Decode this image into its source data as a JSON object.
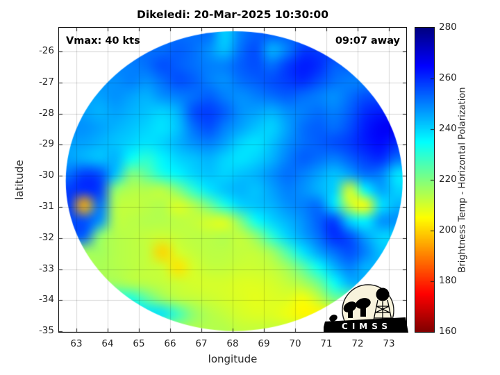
{
  "annotations": {
    "vmax": "Vmax: 40 kts",
    "time_away": "09:07 away"
  },
  "logo": {
    "text": "CIMSS"
  },
  "chart_data": {
    "type": "heatmap",
    "title": "Dikeledi: 20-Mar-2025 10:30:00",
    "xlabel": "longitude",
    "ylabel": "latitude",
    "colorbar_label": "Brightness Temp - Horizontal Polarization",
    "colormap": "jet_reversed",
    "value_range": [
      160,
      280
    ],
    "xlim": [
      62.44,
      73.56
    ],
    "ylim": [
      -35.14,
      -25.24
    ],
    "x_ticks": [
      63,
      64,
      65,
      66,
      67,
      68,
      69,
      70,
      71,
      72,
      73
    ],
    "y_ticks": [
      -26,
      -27,
      -28,
      -29,
      -30,
      -31,
      -32,
      -33,
      -34,
      -35
    ],
    "colorbar_ticks": [
      160,
      180,
      200,
      220,
      240,
      260,
      280
    ],
    "colorbar_inner_ticks": [
      180,
      200,
      220,
      240,
      260
    ],
    "grid_on": true,
    "swath": {
      "center_lon": 68.05,
      "center_lat": -30.17,
      "radius_lon": 5.39,
      "radius_lat": 4.82
    },
    "grid": {
      "lon_start": 62.5,
      "lon_step": 0.5,
      "lat_start": -25.2,
      "lat_step": -0.5,
      "cols": 22,
      "rows": 20,
      "values": [
        [
          null,
          null,
          null,
          null,
          null,
          null,
          null,
          null,
          null,
          252,
          240,
          250,
          254,
          null,
          null,
          null,
          null,
          null,
          null,
          null,
          null,
          null
        ],
        [
          null,
          null,
          null,
          null,
          null,
          null,
          252,
          254,
          252,
          248,
          242,
          252,
          256,
          244,
          250,
          258,
          null,
          null,
          null,
          null,
          null,
          null
        ],
        [
          null,
          null,
          null,
          null,
          250,
          252,
          256,
          254,
          252,
          250,
          250,
          254,
          256,
          252,
          258,
          262,
          260,
          254,
          null,
          null,
          null,
          null
        ],
        [
          null,
          null,
          null,
          248,
          250,
          248,
          252,
          256,
          254,
          250,
          248,
          252,
          254,
          256,
          258,
          260,
          256,
          252,
          250,
          null,
          null,
          null
        ],
        [
          null,
          null,
          246,
          248,
          246,
          244,
          248,
          250,
          252,
          254,
          250,
          248,
          250,
          252,
          254,
          252,
          250,
          248,
          252,
          256,
          null,
          null
        ],
        [
          null,
          246,
          244,
          246,
          244,
          242,
          240,
          244,
          256,
          258,
          254,
          248,
          246,
          244,
          248,
          250,
          252,
          250,
          254,
          260,
          262,
          null
        ],
        [
          null,
          248,
          246,
          244,
          242,
          240,
          238,
          242,
          252,
          256,
          250,
          246,
          242,
          240,
          246,
          252,
          254,
          252,
          256,
          262,
          266,
          null
        ],
        [
          null,
          246,
          244,
          242,
          240,
          238,
          240,
          244,
          248,
          250,
          246,
          240,
          238,
          242,
          248,
          252,
          254,
          256,
          258,
          262,
          264,
          260
        ],
        [
          246,
          244,
          242,
          244,
          234,
          230,
          236,
          240,
          242,
          244,
          240,
          238,
          240,
          244,
          250,
          254,
          252,
          250,
          254,
          258,
          260,
          252
        ],
        [
          252,
          258,
          256,
          242,
          220,
          224,
          232,
          236,
          240,
          242,
          240,
          242,
          244,
          248,
          252,
          250,
          246,
          242,
          246,
          252,
          250,
          238
        ],
        [
          258,
          260,
          258,
          218,
          214,
          214,
          213,
          220,
          230,
          238,
          242,
          244,
          242,
          246,
          250,
          248,
          244,
          240,
          210,
          236,
          246,
          240
        ],
        [
          258,
          196,
          252,
          214,
          212,
          213,
          214,
          209,
          214,
          222,
          232,
          240,
          242,
          244,
          248,
          250,
          252,
          238,
          212,
          205,
          238,
          244
        ],
        [
          null,
          256,
          248,
          214,
          213,
          214,
          214,
          213,
          212,
          210,
          209,
          220,
          234,
          240,
          244,
          248,
          254,
          258,
          240,
          236,
          248,
          null
        ],
        [
          null,
          254,
          218,
          214,
          213,
          212,
          211,
          212,
          213,
          213,
          214,
          212,
          218,
          230,
          240,
          246,
          252,
          260,
          256,
          246,
          240,
          null
        ],
        [
          null,
          null,
          216,
          214,
          213,
          212,
          200,
          210,
          212,
          213,
          213,
          212,
          212,
          216,
          226,
          238,
          246,
          252,
          256,
          250,
          242,
          null
        ],
        [
          null,
          null,
          215,
          214,
          213,
          212,
          211,
          202,
          210,
          212,
          212,
          211,
          211,
          212,
          216,
          224,
          234,
          244,
          250,
          244,
          null,
          null
        ],
        [
          null,
          null,
          null,
          216,
          214,
          213,
          212,
          211,
          210,
          210,
          210,
          209,
          209,
          210,
          212,
          215,
          222,
          234,
          244,
          null,
          null,
          null
        ],
        [
          null,
          null,
          null,
          null,
          232,
          224,
          217,
          213,
          212,
          211,
          210,
          209,
          208,
          209,
          209,
          206,
          212,
          222,
          null,
          null,
          null,
          null
        ],
        [
          null,
          null,
          null,
          null,
          null,
          null,
          238,
          228,
          218,
          214,
          212,
          210,
          209,
          209,
          207,
          204,
          null,
          null,
          null,
          null,
          null,
          null
        ],
        [
          null,
          null,
          null,
          null,
          null,
          null,
          null,
          null,
          null,
          null,
          214,
          212,
          null,
          null,
          null,
          null,
          null,
          null,
          null,
          null,
          null,
          null
        ]
      ]
    }
  }
}
